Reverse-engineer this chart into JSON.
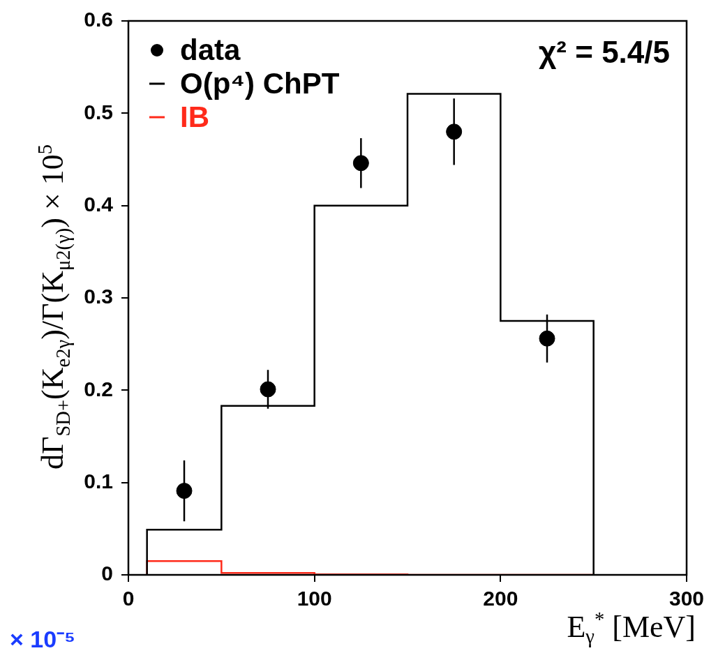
{
  "chart_data": {
    "type": "histogram",
    "xlabel": "E$_{γ}$$^{*}$ [MeV]",
    "ylabel": "dΓ$_{SD+}$(K$_{e2γ}$)/Γ(K$_{μ2(γ)}$) × 10$^{5}$",
    "annotations": [
      "χ² = 5.4/5",
      "× 10⁻⁵"
    ],
    "bins": [
      10,
      50,
      100,
      150,
      200,
      250
    ],
    "series": [
      {
        "name": "data",
        "type": "scatter",
        "color": "#000000",
        "x": [
          30,
          75,
          125,
          175,
          225
        ],
        "values": [
          0.091,
          0.201,
          0.446,
          0.48,
          0.256
        ],
        "errors": [
          0.033,
          0.021,
          0.027,
          0.036,
          0.026
        ]
      },
      {
        "name": "O(p⁴) ChPT",
        "type": "histogram",
        "color": "#000000",
        "values": [
          0.049,
          0.183,
          0.4,
          0.521,
          0.275
        ]
      },
      {
        "name": "IB",
        "type": "histogram",
        "color": "#ff2a1a",
        "values": [
          0.015,
          0.002,
          0.0005,
          0,
          0
        ]
      }
    ],
    "xlim": [
      0,
      300
    ],
    "xticks": [
      0,
      100,
      200,
      300
    ],
    "ylim": [
      0,
      0.6
    ],
    "yticks": [
      0,
      0.1,
      0.2,
      0.3,
      0.4,
      0.5,
      0.6
    ],
    "marker": "circle",
    "legend": "top left",
    "grid": false
  }
}
